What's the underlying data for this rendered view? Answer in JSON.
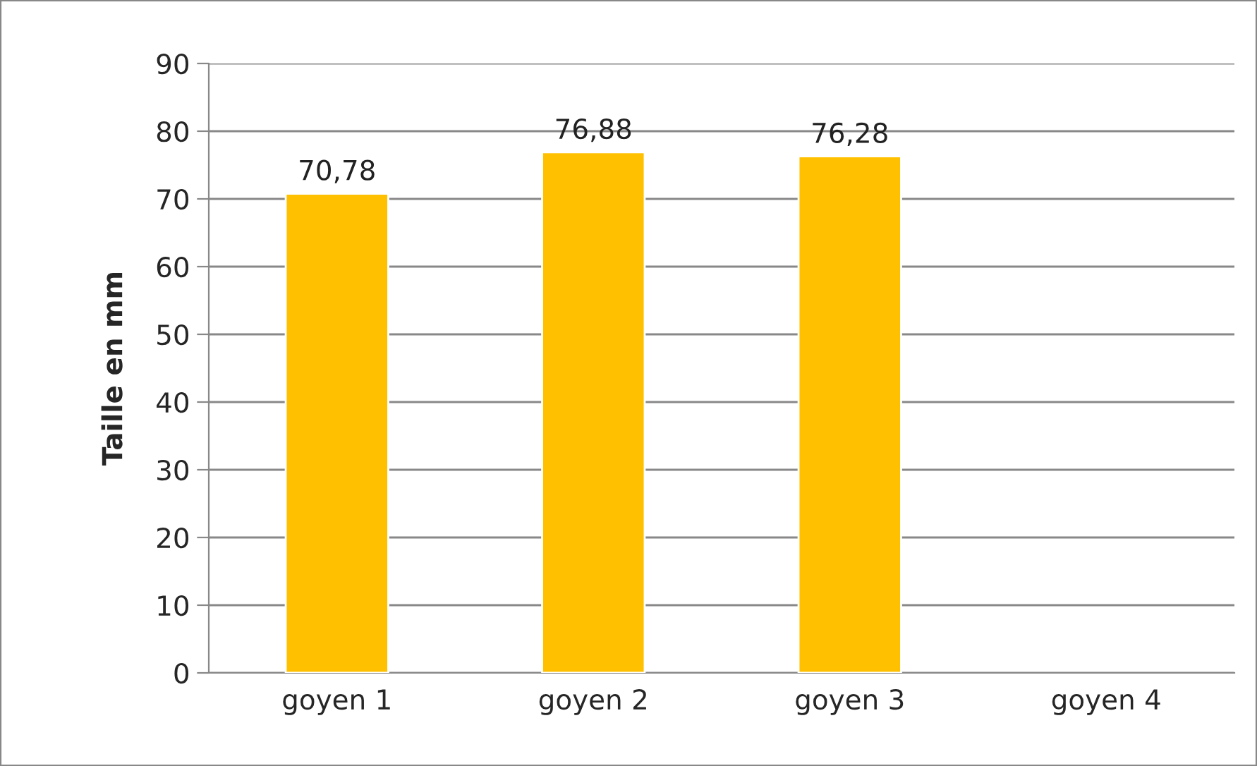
{
  "chart_data": {
    "type": "bar",
    "ylabel": "Taille en mm",
    "categories": [
      "goyen 1",
      "goyen 2",
      "goyen 3",
      "goyen 4"
    ],
    "values": [
      70.78,
      76.88,
      76.28,
      null
    ],
    "value_labels": [
      "70,78",
      "76,88",
      "76,28",
      null
    ],
    "color": "#ffc000",
    "ylim": [
      0,
      90
    ],
    "yticks": [
      0,
      10,
      20,
      30,
      40,
      50,
      60,
      70,
      80,
      90
    ],
    "grid": "y",
    "legend": false
  }
}
